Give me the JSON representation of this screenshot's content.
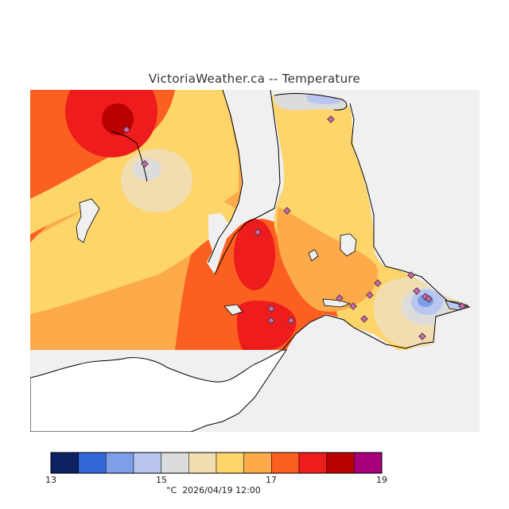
{
  "title": "VictoriaWeather.ca -- Temperature",
  "legend": {
    "colors": [
      "#0d2163",
      "#3366d9",
      "#7f9ee8",
      "#b8c6f0",
      "#dcdcdc",
      "#f2ddb0",
      "#fdd56a",
      "#fcaa4a",
      "#fb6020",
      "#ee1c1c",
      "#bb0000",
      "#a8007a"
    ],
    "ticks": [
      "13",
      "15",
      "17",
      "19"
    ],
    "unit": "°C",
    "timestamp": "2026/04/19 12:00"
  },
  "map": {
    "water_color": "#f0f0f0",
    "station_marker_color": "#cc66aa"
  }
}
